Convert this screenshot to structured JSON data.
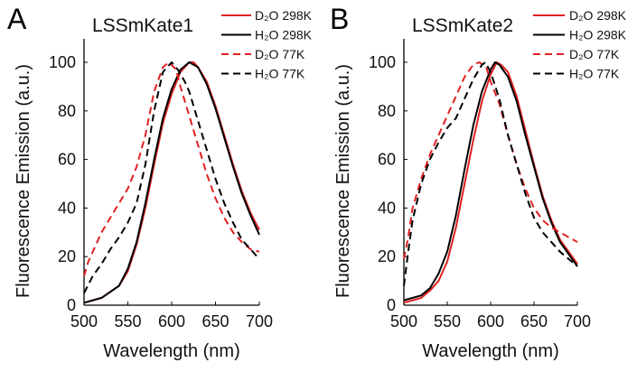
{
  "chart_data": [
    {
      "type": "line",
      "panel_letter": "A",
      "title": "LSSmKate1",
      "xlabel": "Wavelength (nm)",
      "ylabel": "Fluorescence Emission (a.u.)",
      "xlim": [
        500,
        700
      ],
      "ylim": [
        0,
        110
      ],
      "xticks": [
        500,
        550,
        600,
        650,
        700
      ],
      "yticks": [
        0,
        20,
        40,
        60,
        80,
        100
      ],
      "legend_position": "top-right",
      "series": [
        {
          "name": "D₂O 298K",
          "color": "#e02020",
          "dash": false,
          "x": [
            500,
            520,
            540,
            550,
            560,
            570,
            580,
            590,
            600,
            610,
            620,
            625,
            630,
            640,
            650,
            660,
            670,
            680,
            690,
            700
          ],
          "y": [
            1,
            3,
            8,
            14,
            25,
            40,
            58,
            75,
            87,
            96,
            100,
            100,
            98,
            92,
            82,
            70,
            58,
            47,
            38,
            31
          ]
        },
        {
          "name": "H₂O 298K",
          "color": "#000000",
          "dash": false,
          "x": [
            500,
            520,
            540,
            550,
            560,
            570,
            580,
            590,
            600,
            610,
            620,
            630,
            640,
            650,
            660,
            670,
            680,
            690,
            700
          ],
          "y": [
            1,
            3,
            8,
            15,
            26,
            42,
            60,
            77,
            89,
            97,
            100,
            98,
            91,
            81,
            69,
            57,
            46,
            37,
            29
          ]
        },
        {
          "name": "D₂O 77K",
          "color": "#e02020",
          "dash": true,
          "x": [
            500,
            505,
            520,
            540,
            550,
            560,
            570,
            580,
            590,
            597,
            605,
            610,
            620,
            630,
            640,
            650,
            660,
            670,
            680,
            690,
            700
          ],
          "y": [
            12,
            18,
            30,
            42,
            48,
            57,
            70,
            88,
            98,
            100,
            97,
            90,
            78,
            66,
            54,
            44,
            36,
            30,
            26,
            23,
            22
          ]
        },
        {
          "name": "H₂O 77K",
          "color": "#000000",
          "dash": true,
          "x": [
            500,
            510,
            520,
            530,
            540,
            550,
            560,
            570,
            580,
            590,
            600,
            607,
            615,
            620,
            630,
            640,
            650,
            660,
            670,
            680,
            690,
            700
          ],
          "y": [
            5,
            12,
            17,
            23,
            28,
            34,
            42,
            58,
            80,
            96,
            100,
            97,
            92,
            88,
            76,
            64,
            52,
            42,
            34,
            27,
            23,
            19
          ]
        }
      ]
    },
    {
      "type": "line",
      "panel_letter": "B",
      "title": "LSSmKate2",
      "xlabel": "Wavelength (nm)",
      "ylabel": "Fluorescence Emission (a.u.)",
      "xlim": [
        500,
        700
      ],
      "ylim": [
        0,
        110
      ],
      "xticks": [
        500,
        550,
        600,
        650,
        700
      ],
      "yticks": [
        0,
        20,
        40,
        60,
        80,
        100
      ],
      "legend_position": "top-right",
      "series": [
        {
          "name": "D₂O 298K",
          "color": "#e02020",
          "dash": false,
          "x": [
            500,
            520,
            530,
            540,
            550,
            560,
            570,
            580,
            590,
            600,
            607,
            612,
            620,
            630,
            640,
            650,
            660,
            670,
            680,
            690,
            700
          ],
          "y": [
            1,
            3,
            6,
            10,
            18,
            32,
            50,
            68,
            84,
            95,
            100,
            99,
            96,
            86,
            72,
            58,
            45,
            35,
            27,
            22,
            17
          ]
        },
        {
          "name": "H₂O 298K",
          "color": "#000000",
          "dash": false,
          "x": [
            500,
            520,
            530,
            540,
            550,
            560,
            570,
            580,
            590,
            600,
            605,
            610,
            620,
            630,
            640,
            650,
            660,
            670,
            680,
            690,
            700
          ],
          "y": [
            2,
            4,
            7,
            13,
            22,
            37,
            56,
            74,
            88,
            97,
            100,
            99,
            94,
            84,
            70,
            57,
            44,
            34,
            26,
            21,
            16
          ]
        },
        {
          "name": "D₂O 77K",
          "color": "#e02020",
          "dash": true,
          "x": [
            500,
            505,
            510,
            520,
            530,
            540,
            550,
            560,
            570,
            580,
            587,
            595,
            600,
            610,
            620,
            630,
            640,
            650,
            660,
            670,
            680,
            690,
            700
          ],
          "y": [
            19,
            28,
            40,
            52,
            62,
            70,
            78,
            86,
            94,
            99,
            100,
            98,
            92,
            83,
            70,
            58,
            48,
            40,
            35,
            32,
            30,
            28,
            26
          ]
        },
        {
          "name": "H₂O 77K",
          "color": "#000000",
          "dash": true,
          "x": [
            500,
            505,
            510,
            520,
            530,
            540,
            550,
            560,
            570,
            580,
            590,
            594,
            600,
            610,
            620,
            630,
            640,
            650,
            660,
            670,
            680,
            690,
            700
          ],
          "y": [
            8,
            22,
            35,
            50,
            60,
            67,
            73,
            77,
            85,
            93,
            99,
            100,
            96,
            85,
            70,
            58,
            46,
            36,
            30,
            26,
            22,
            19,
            16
          ]
        }
      ]
    }
  ]
}
